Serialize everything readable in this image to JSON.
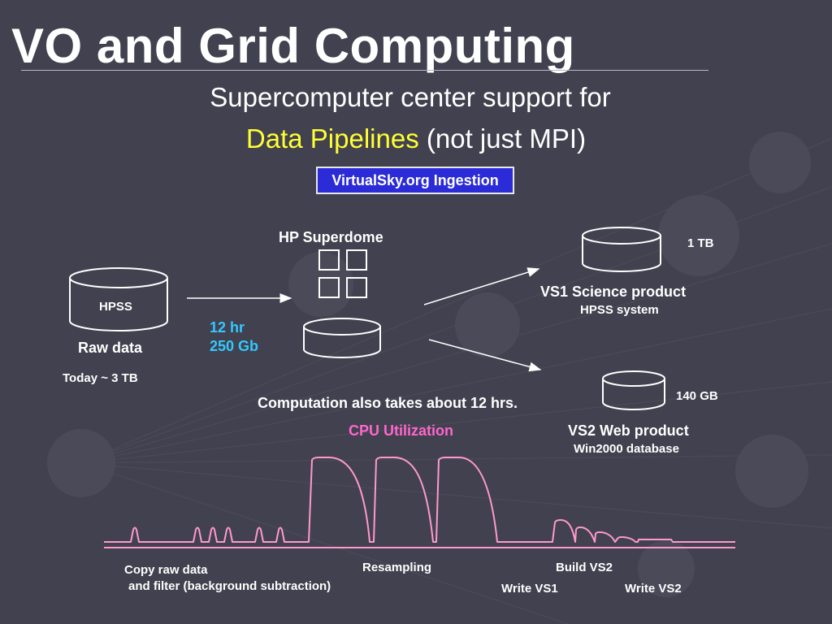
{
  "slide": {
    "title": "VO and Grid Computing",
    "subtitle_line1": "Supercomputer center support for",
    "subtitle_highlight": "Data Pipelines",
    "subtitle_rest": " (not just MPI)",
    "badge": "VirtualSky.org Ingestion"
  },
  "diagram": {
    "hpss": {
      "label": "HPSS",
      "caption": "Raw data",
      "today": "Today ~ 3 TB"
    },
    "transfer": {
      "time": "12 hr",
      "size": "250 Gb"
    },
    "superdome": {
      "label": "HP Superdome"
    },
    "vs1": {
      "size": "1 TB",
      "title": "VS1 Science product",
      "subtitle": "HPSS system"
    },
    "vs2": {
      "size": "140 GB",
      "title": "VS2 Web product",
      "subtitle": "Win2000 database"
    },
    "computation_note": "Computation also takes about 12 hrs.",
    "cpu_label": "CPU Utilization"
  },
  "timeline": {
    "copy_line1": "Copy raw data",
    "copy_line2": "and filter (background subtraction)",
    "resampling": "Resampling",
    "build_vs2": "Build VS2",
    "write_vs1": "Write VS1",
    "write_vs2": "Write VS2"
  },
  "colors": {
    "background": "#41414f",
    "highlight": "#ffff33",
    "badge_bg": "#2b2bd8",
    "cyan": "#33c8ff",
    "pink": "#ff66cc",
    "cpu_line": "#ff99cc"
  }
}
